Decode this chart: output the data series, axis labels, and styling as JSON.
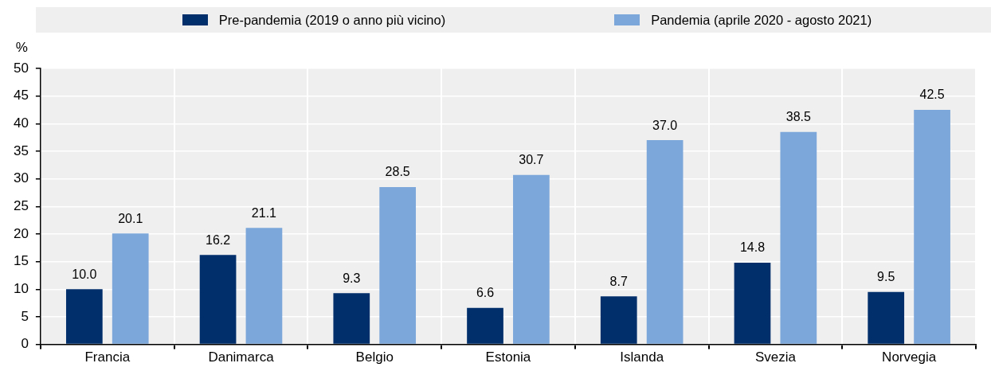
{
  "chart_data": {
    "type": "bar",
    "ylabel": "%",
    "categories": [
      "Francia",
      "Danimarca",
      "Belgio",
      "Estonia",
      "Islanda",
      "Svezia",
      "Norvegia"
    ],
    "series": [
      {
        "name": "Pre-pandemia (2019 o anno più vicino)",
        "color": "#002f6c",
        "values": [
          10.0,
          16.2,
          9.3,
          6.6,
          8.7,
          14.8,
          9.5
        ],
        "value_labels": [
          "10.0",
          "16.2",
          "9.3",
          "6.6",
          "8.7",
          "14.8",
          "9.5"
        ]
      },
      {
        "name": "Pandemia (aprile 2020 - agosto 2021)",
        "color": "#7ca7da",
        "values": [
          20.1,
          21.1,
          28.5,
          30.7,
          37.0,
          38.5,
          42.5
        ],
        "value_labels": [
          "20.1",
          "21.1",
          "28.5",
          "30.7",
          "37.0",
          "38.5",
          "42.5"
        ]
      }
    ],
    "ylim": [
      0,
      50
    ],
    "yticks": [
      0,
      5,
      10,
      15,
      20,
      25,
      30,
      35,
      40,
      45,
      50
    ],
    "grid": true,
    "legend": "top"
  }
}
